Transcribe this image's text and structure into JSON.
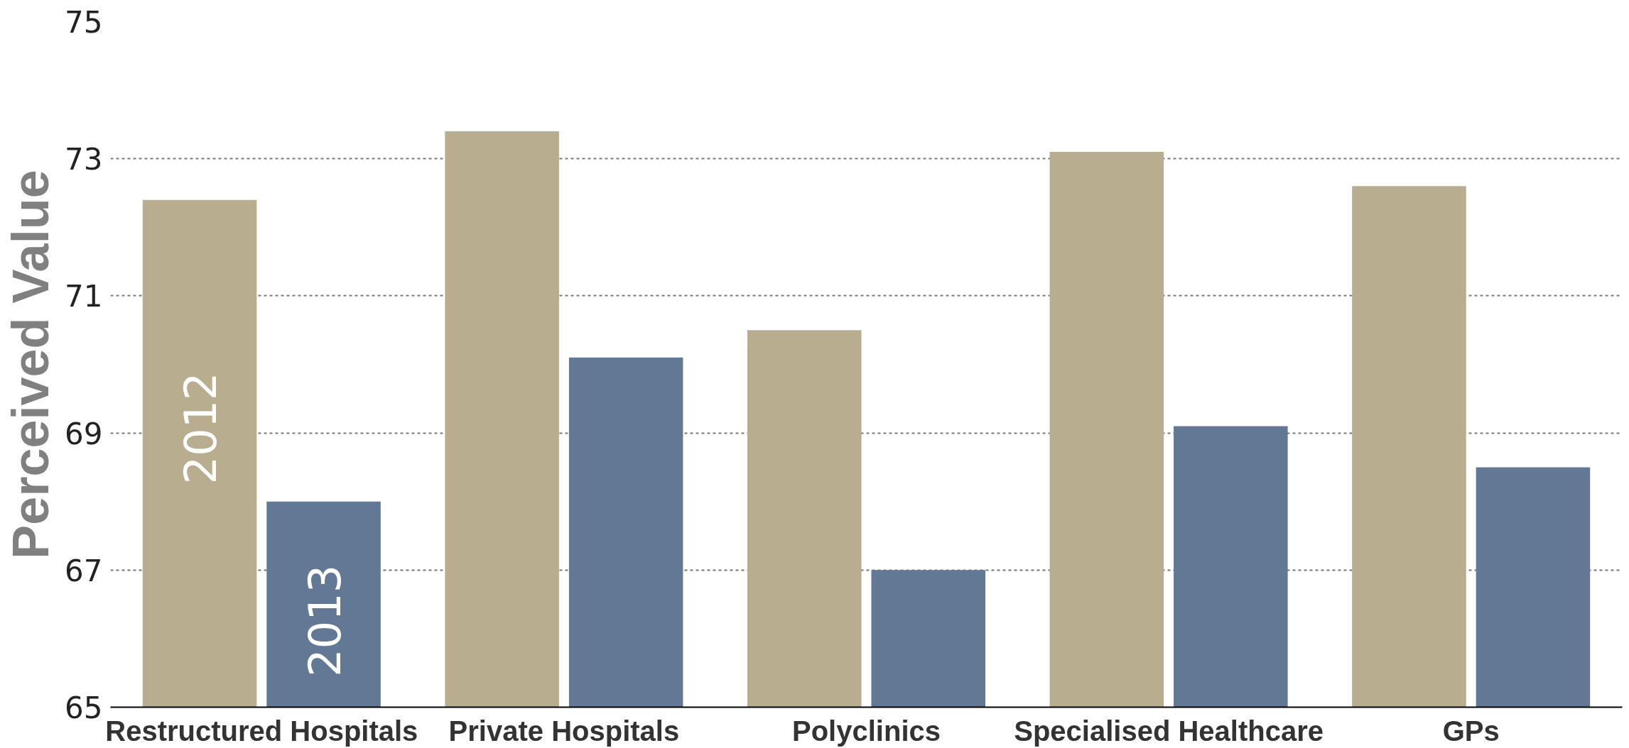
{
  "chart_data": {
    "type": "bar",
    "ylabel": "Perceived Value",
    "categories": [
      "Restructured Hospitals",
      "Private Hospitals",
      "Polyclinics",
      "Specialised Healthcare",
      "GPs"
    ],
    "series": [
      {
        "name": "2012",
        "color": "#b8ad8f",
        "values": [
          72.4,
          73.4,
          70.5,
          73.1,
          72.6
        ]
      },
      {
        "name": "2013",
        "color": "#627895",
        "values": [
          68.0,
          70.1,
          67.0,
          69.1,
          68.5
        ]
      }
    ],
    "ylim": [
      65,
      75
    ],
    "yticks": [
      65,
      67,
      69,
      71,
      73,
      75
    ],
    "grid": "y",
    "legend": false
  }
}
